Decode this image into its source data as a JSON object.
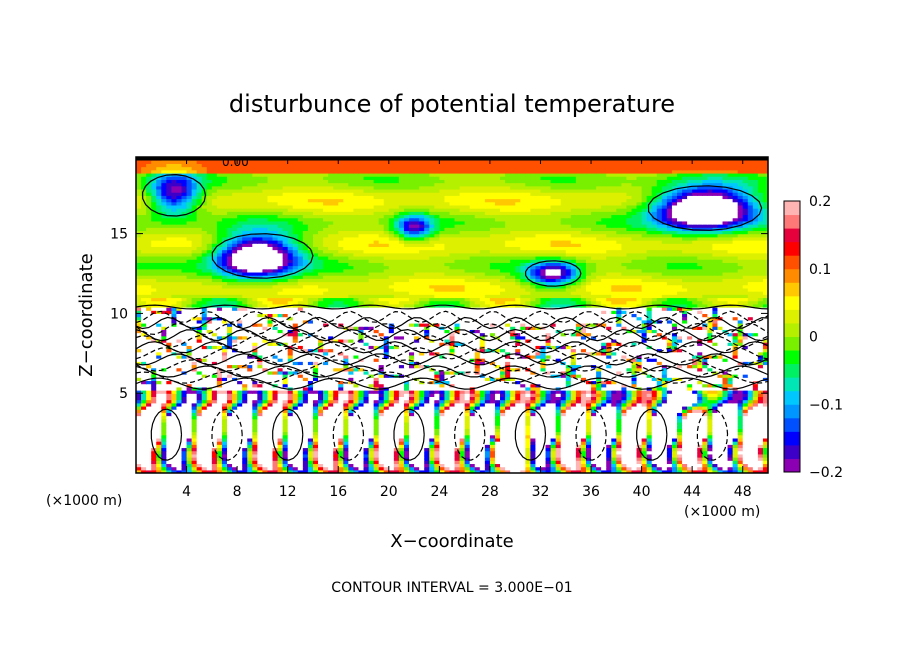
{
  "chart_data": {
    "type": "heatmap",
    "title": "disturbunce of potential temperature",
    "xlabel": "X−coordinate",
    "ylabel": "Z−coordinate",
    "x_unit": "(×1000 m)",
    "z_unit": "(×1000 m)",
    "xlim": [
      0,
      50
    ],
    "ylim": [
      0,
      19.8
    ],
    "x_ticks": [
      4,
      8,
      12,
      16,
      20,
      24,
      28,
      32,
      36,
      40,
      44,
      48
    ],
    "x_tick_labels": [
      "4",
      "8",
      "12",
      "16",
      "20",
      "24",
      "28",
      "32",
      "36",
      "40",
      "44",
      "48"
    ],
    "y_ticks": [
      5,
      10,
      15
    ],
    "y_tick_labels": [
      "5",
      "10",
      "15"
    ],
    "colorbar": {
      "range": [
        -0.2,
        0.2
      ],
      "ticks": [
        0.2,
        0.1,
        0,
        -0.1,
        -0.2
      ],
      "tick_labels": [
        "0.2",
        "0.1",
        "0",
        "−0.1",
        "−0.2"
      ],
      "colors": [
        "#8c00b4",
        "#3c00c8",
        "#0000ff",
        "#0050ff",
        "#0096ff",
        "#00c8ff",
        "#00e6b4",
        "#00f064",
        "#00ff00",
        "#78f000",
        "#b4f000",
        "#dcf000",
        "#ffff00",
        "#ffc800",
        "#ff8c00",
        "#ff5000",
        "#ff0000",
        "#e6003c",
        "#ff7878",
        "#ffb4b4"
      ]
    },
    "contour_label": "0.00",
    "contour_interval_text": "CONTOUR INTERVAL = 3.000E−01",
    "grid": false,
    "legend": "colorbar right"
  }
}
